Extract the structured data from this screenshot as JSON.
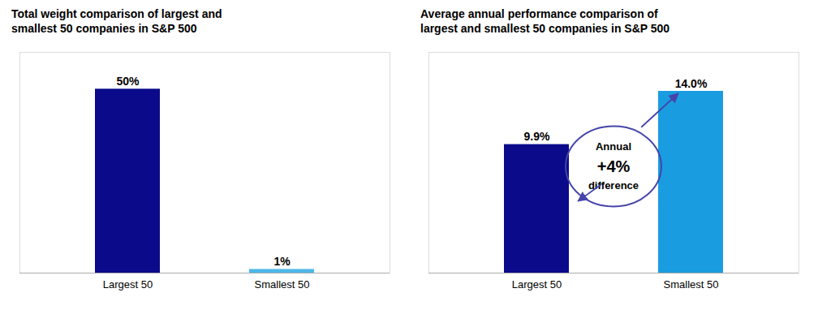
{
  "chart_data": [
    {
      "type": "bar",
      "title": "Total weight comparison of largest and\nsmallest 50 companies in S&P 500",
      "categories": [
        "Largest 50",
        "Smallest 50"
      ],
      "values": [
        50,
        1
      ],
      "value_labels": [
        "50%",
        "1%"
      ],
      "colors": [
        "#0a0a8a",
        "#4db8e8"
      ],
      "data_labels": true,
      "ylim": [
        0,
        60
      ],
      "tick_labels": "x",
      "grid": false
    },
    {
      "type": "bar",
      "title": "Average annual performance comparison of\nlargest and smallest 50 companies in S&P 500",
      "categories": [
        "Largest 50",
        "Smallest 50"
      ],
      "values": [
        9.9,
        14.0
      ],
      "value_labels": [
        "9.9%",
        "14.0%"
      ],
      "colors": [
        "#0a0a8a",
        "#1a9de0"
      ],
      "data_labels": true,
      "ylim": [
        0,
        17
      ],
      "tick_labels": "x",
      "grid": false,
      "annotation": {
        "text": [
          "Annual",
          "+4%",
          "difference"
        ],
        "color": "#4444aa"
      }
    }
  ]
}
